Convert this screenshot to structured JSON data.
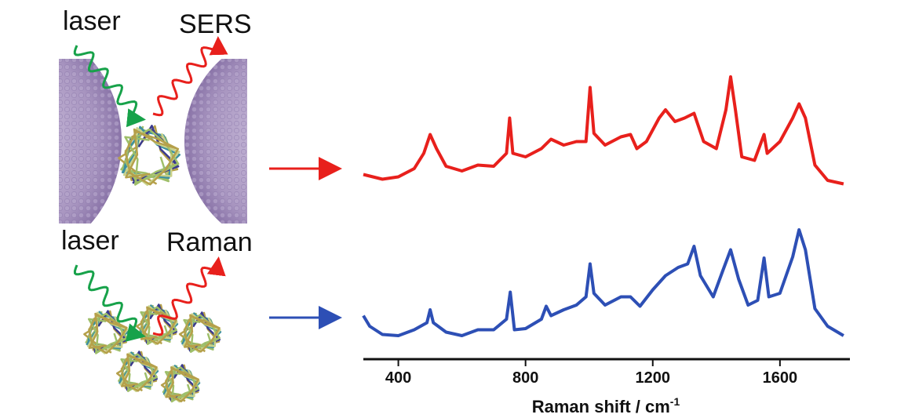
{
  "chart_data": {
    "type": "line",
    "annotations": [
      "laser",
      "SERS",
      "laser",
      "Raman"
    ],
    "x_label": "Raman shift / cm",
    "x_label_sup": "-1",
    "xlim": [
      290,
      1820
    ],
    "xticks": [
      400,
      800,
      1200,
      1600
    ],
    "ylim": [
      0,
      100
    ],
    "series": [
      {
        "name": "SERS",
        "color": "#e8201c",
        "x": [
          290,
          320,
          350,
          400,
          450,
          480,
          500,
          520,
          550,
          600,
          650,
          700,
          740,
          750,
          760,
          800,
          850,
          880,
          920,
          960,
          990,
          1003,
          1015,
          1050,
          1100,
          1130,
          1150,
          1180,
          1220,
          1240,
          1270,
          1300,
          1330,
          1360,
          1400,
          1430,
          1445,
          1460,
          1480,
          1520,
          1550,
          1560,
          1600,
          1640,
          1660,
          1680,
          1710,
          1750,
          1800
        ],
        "values": [
          15,
          13,
          11,
          13,
          20,
          33,
          49,
          37,
          22,
          18,
          23,
          22,
          33,
          63,
          33,
          30,
          37,
          45,
          40,
          43,
          43,
          89,
          50,
          40,
          47,
          49,
          37,
          43,
          63,
          70,
          60,
          63,
          67,
          43,
          37,
          70,
          98,
          70,
          30,
          27,
          49,
          33,
          43,
          63,
          75,
          63,
          23,
          10,
          7
        ]
      },
      {
        "name": "Raman",
        "color": "#2d4fb5",
        "x": [
          290,
          310,
          350,
          400,
          450,
          490,
          500,
          510,
          550,
          600,
          650,
          700,
          740,
          752,
          765,
          800,
          850,
          865,
          880,
          920,
          960,
          990,
          1003,
          1015,
          1050,
          1100,
          1130,
          1160,
          1200,
          1240,
          1280,
          1310,
          1330,
          1350,
          1390,
          1420,
          1445,
          1470,
          1500,
          1530,
          1550,
          1565,
          1600,
          1640,
          1660,
          1680,
          1710,
          1750,
          1800
        ],
        "values": [
          25,
          16,
          9,
          8,
          13,
          19,
          30,
          19,
          11,
          8,
          13,
          13,
          22,
          45,
          13,
          14,
          22,
          33,
          25,
          30,
          34,
          41,
          69,
          44,
          34,
          41,
          41,
          33,
          47,
          59,
          66,
          69,
          84,
          59,
          41,
          63,
          81,
          56,
          34,
          38,
          74,
          41,
          44,
          75,
          98,
          81,
          31,
          16,
          8
        ]
      }
    ]
  }
}
